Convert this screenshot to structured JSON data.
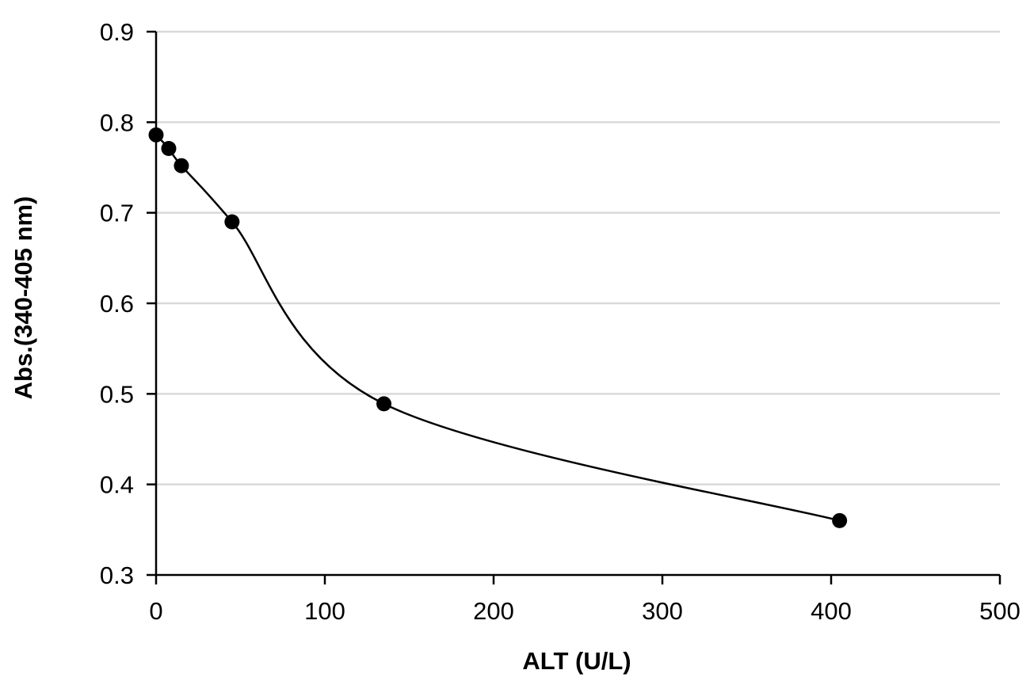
{
  "chart_data": {
    "type": "scatter",
    "title": "",
    "xlabel": "ALT (U/L)",
    "ylabel": "Abs.(340-405 nm)",
    "xlim": [
      0,
      500
    ],
    "ylim": [
      0.3,
      0.9
    ],
    "x_ticks": [
      "0",
      "100",
      "200",
      "300",
      "400",
      "500"
    ],
    "y_ticks": [
      "0.3",
      "0.4",
      "0.5",
      "0.6",
      "0.7",
      "0.8",
      "0.9"
    ],
    "grid": "horizontal",
    "legend": "none",
    "smooth_line": true,
    "series": [
      {
        "x": [
          0,
          7.5,
          15,
          45,
          135,
          405
        ],
        "y": [
          0.786,
          0.771,
          0.752,
          0.69,
          0.489,
          0.36
        ]
      }
    ],
    "colors": {
      "marker": "#000000",
      "line": "#000000",
      "grid": "#d9d9d9",
      "axis": "#000000"
    }
  }
}
